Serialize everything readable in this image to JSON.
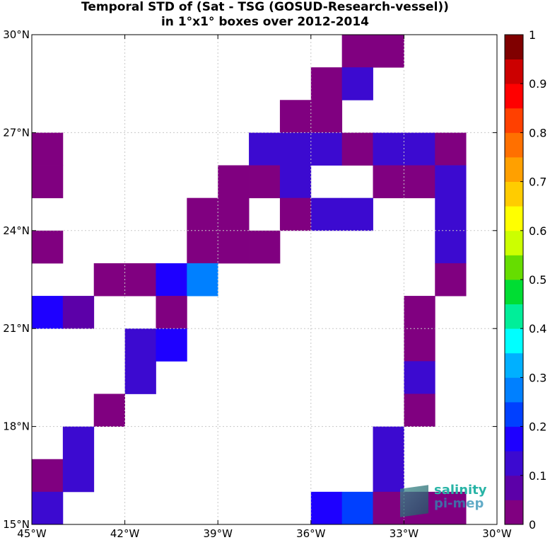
{
  "title_line1": "Temporal STD of (Sat - TSG (GOSUD-Research-vessel))",
  "title_line2": "in 1°x1° boxes over 2012-2014",
  "logo": {
    "line1": "salinity",
    "line2": "pi-mep"
  },
  "chart_data": {
    "type": "heatmap",
    "title": "Temporal STD of (Sat - TSG (GOSUD-Research-vessel)) in 1°x1° boxes over 2012-2014",
    "xlim": [
      -45,
      -30
    ],
    "ylim": [
      15,
      30
    ],
    "grid": true,
    "x_ticks": [
      -45,
      -42,
      -39,
      -36,
      -33,
      -30
    ],
    "x_tick_labels": [
      "45°W",
      "42°W",
      "39°W",
      "36°W",
      "33°W",
      "30°W"
    ],
    "y_ticks": [
      15,
      18,
      21,
      24,
      27,
      30
    ],
    "y_tick_labels": [
      "15°N",
      "18°N",
      "21°N",
      "24°N",
      "27°N",
      "30°N"
    ],
    "colorbar": {
      "colormap": "jet",
      "range": [
        0,
        1
      ],
      "levels": 16,
      "ticks": [
        0,
        0.1,
        0.2,
        0.3,
        0.4,
        0.5,
        0.6,
        0.7,
        0.8,
        0.9,
        1
      ],
      "tick_labels": [
        "0",
        "0.1",
        "0.2",
        "0.3",
        "0.4",
        "0.5",
        "0.6",
        "0.7",
        "0.8",
        "0.9",
        "1"
      ],
      "colors": [
        "#800080",
        "#5c00a8",
        "#3c0ad0",
        "#1e00ff",
        "#0040ff",
        "#0080ff",
        "#00b0ff",
        "#00ffff",
        "#00ee99",
        "#00dd33",
        "#66dd00",
        "#ccff00",
        "#ffff00",
        "#ffcc00",
        "#ffa000",
        "#ff7000",
        "#ff4000",
        "#ff0000",
        "#cc0000",
        "#800000"
      ]
    },
    "cells": [
      {
        "lon": -34.5,
        "lat": 29.5,
        "value": 0.02
      },
      {
        "lon": -33.5,
        "lat": 29.5,
        "value": 0.02
      },
      {
        "lon": -35.5,
        "lat": 28.5,
        "value": 0.02
      },
      {
        "lon": -34.5,
        "lat": 28.5,
        "value": 0.12
      },
      {
        "lon": -36.5,
        "lat": 27.5,
        "value": 0.02
      },
      {
        "lon": -35.5,
        "lat": 27.5,
        "value": 0.02
      },
      {
        "lon": -44.5,
        "lat": 26.5,
        "value": 0.02
      },
      {
        "lon": -37.5,
        "lat": 26.5,
        "value": 0.12
      },
      {
        "lon": -36.5,
        "lat": 26.5,
        "value": 0.12
      },
      {
        "lon": -35.5,
        "lat": 26.5,
        "value": 0.12
      },
      {
        "lon": -34.5,
        "lat": 26.5,
        "value": 0.02
      },
      {
        "lon": -33.5,
        "lat": 26.5,
        "value": 0.12
      },
      {
        "lon": -32.5,
        "lat": 26.5,
        "value": 0.12
      },
      {
        "lon": -31.5,
        "lat": 26.5,
        "value": 0.02
      },
      {
        "lon": -44.5,
        "lat": 25.5,
        "value": 0.02
      },
      {
        "lon": -38.5,
        "lat": 25.5,
        "value": 0.02
      },
      {
        "lon": -37.5,
        "lat": 25.5,
        "value": 0.02
      },
      {
        "lon": -36.5,
        "lat": 25.5,
        "value": 0.12
      },
      {
        "lon": -33.5,
        "lat": 25.5,
        "value": 0.02
      },
      {
        "lon": -32.5,
        "lat": 25.5,
        "value": 0.02
      },
      {
        "lon": -31.5,
        "lat": 25.5,
        "value": 0.12
      },
      {
        "lon": -39.5,
        "lat": 24.5,
        "value": 0.02
      },
      {
        "lon": -38.5,
        "lat": 24.5,
        "value": 0.02
      },
      {
        "lon": -36.5,
        "lat": 24.5,
        "value": 0.02
      },
      {
        "lon": -35.5,
        "lat": 24.5,
        "value": 0.12
      },
      {
        "lon": -34.5,
        "lat": 24.5,
        "value": 0.12
      },
      {
        "lon": -31.5,
        "lat": 24.5,
        "value": 0.12
      },
      {
        "lon": -44.5,
        "lat": 23.5,
        "value": 0.02
      },
      {
        "lon": -39.5,
        "lat": 23.5,
        "value": 0.02
      },
      {
        "lon": -38.5,
        "lat": 23.5,
        "value": 0.02
      },
      {
        "lon": -37.5,
        "lat": 23.5,
        "value": 0.02
      },
      {
        "lon": -31.5,
        "lat": 23.5,
        "value": 0.12
      },
      {
        "lon": -42.5,
        "lat": 22.5,
        "value": 0.02
      },
      {
        "lon": -41.5,
        "lat": 22.5,
        "value": 0.02
      },
      {
        "lon": -40.5,
        "lat": 22.5,
        "value": 0.17
      },
      {
        "lon": -39.5,
        "lat": 22.5,
        "value": 0.28
      },
      {
        "lon": -31.5,
        "lat": 22.5,
        "value": 0.02
      },
      {
        "lon": -44.5,
        "lat": 21.5,
        "value": 0.17
      },
      {
        "lon": -43.5,
        "lat": 21.5,
        "value": 0.08
      },
      {
        "lon": -40.5,
        "lat": 21.5,
        "value": 0.02
      },
      {
        "lon": -32.5,
        "lat": 21.5,
        "value": 0.02
      },
      {
        "lon": -41.5,
        "lat": 20.5,
        "value": 0.12
      },
      {
        "lon": -40.5,
        "lat": 20.5,
        "value": 0.17
      },
      {
        "lon": -32.5,
        "lat": 20.5,
        "value": 0.02
      },
      {
        "lon": -41.5,
        "lat": 19.5,
        "value": 0.12
      },
      {
        "lon": -32.5,
        "lat": 19.5,
        "value": 0.12
      },
      {
        "lon": -42.5,
        "lat": 18.5,
        "value": 0.02
      },
      {
        "lon": -32.5,
        "lat": 18.5,
        "value": 0.02
      },
      {
        "lon": -43.5,
        "lat": 17.5,
        "value": 0.12
      },
      {
        "lon": -33.5,
        "lat": 17.5,
        "value": 0.12
      },
      {
        "lon": -44.5,
        "lat": 16.5,
        "value": 0.02
      },
      {
        "lon": -43.5,
        "lat": 16.5,
        "value": 0.12
      },
      {
        "lon": -33.5,
        "lat": 16.5,
        "value": 0.12
      },
      {
        "lon": -44.5,
        "lat": 15.5,
        "value": 0.12
      },
      {
        "lon": -35.5,
        "lat": 15.5,
        "value": 0.17
      },
      {
        "lon": -34.5,
        "lat": 15.5,
        "value": 0.22
      },
      {
        "lon": -33.5,
        "lat": 15.5,
        "value": 0.02
      },
      {
        "lon": -32.5,
        "lat": 15.5,
        "value": 0.02
      },
      {
        "lon": -31.5,
        "lat": 15.5,
        "value": 0.02
      }
    ]
  }
}
